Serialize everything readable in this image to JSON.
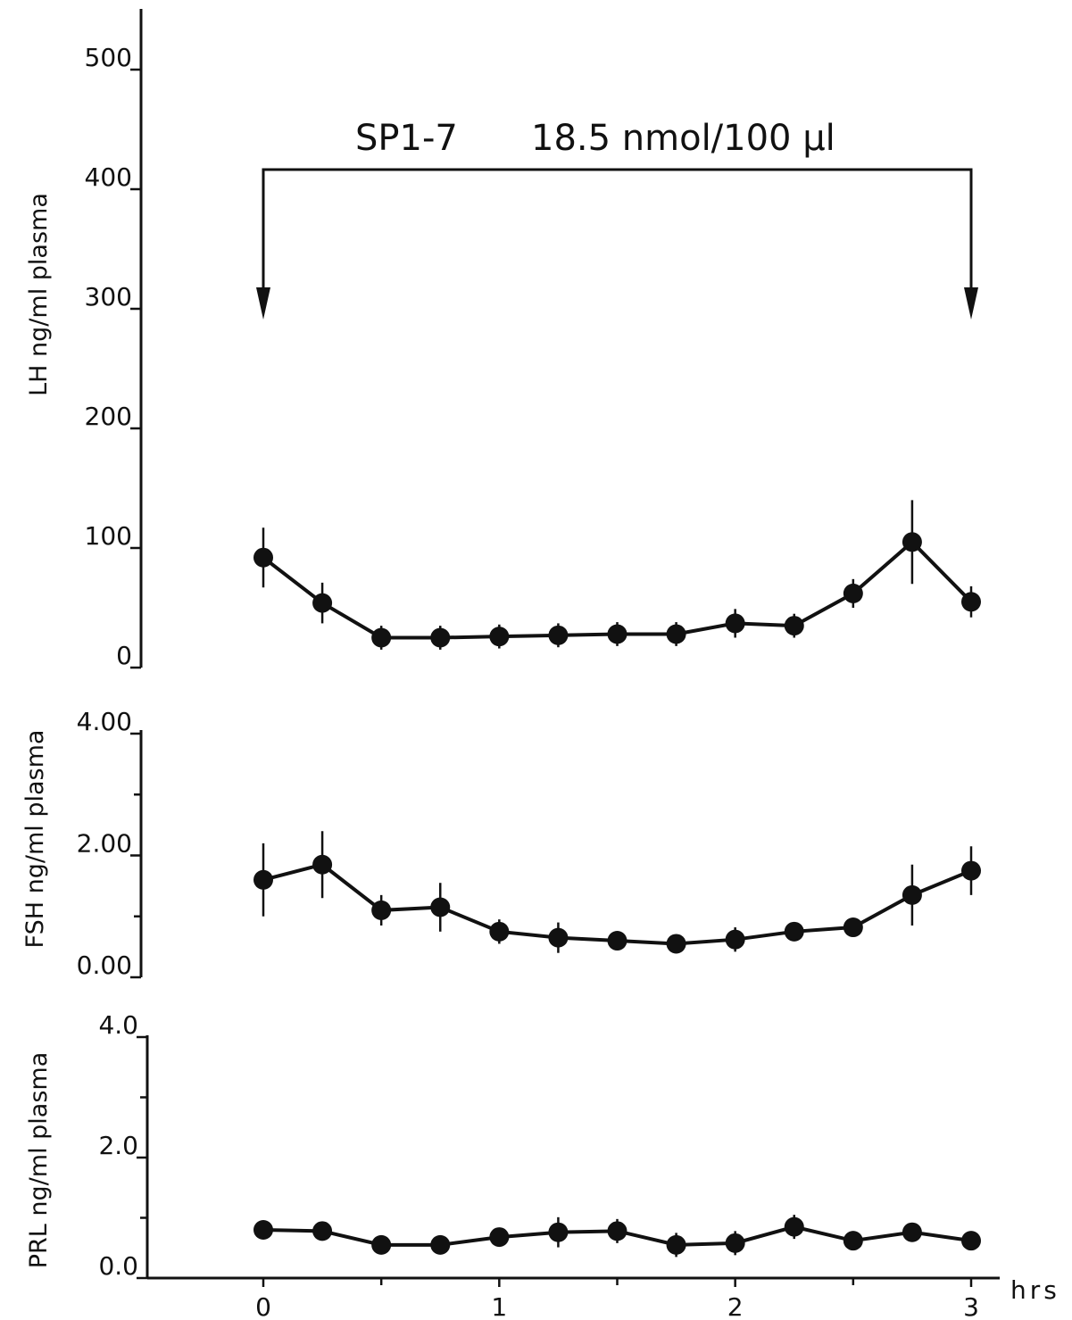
{
  "chart_data": [
    {
      "type": "line",
      "panel": "LH",
      "ylabel": "LH ng/ml plasma",
      "ylim": [
        0,
        500
      ],
      "yticks": [
        0,
        100,
        200,
        300,
        400,
        500
      ],
      "ytick_labels": [
        "0",
        "100",
        "200",
        "300",
        "400",
        "500"
      ],
      "x": [
        0,
        0.25,
        0.5,
        0.75,
        1.0,
        1.25,
        1.5,
        1.75,
        2.0,
        2.25,
        2.5,
        2.75,
        3.0
      ],
      "values": [
        92,
        54,
        25,
        25,
        26,
        27,
        28,
        28,
        37,
        35,
        62,
        105,
        55
      ],
      "errors": [
        25,
        17,
        10,
        10,
        10,
        10,
        10,
        10,
        12,
        10,
        12,
        35,
        13
      ]
    },
    {
      "type": "line",
      "panel": "FSH",
      "ylabel": "FSH ng/ml plasma",
      "ylim": [
        0,
        4
      ],
      "yticks": [
        0,
        2,
        4
      ],
      "ytick_labels": [
        "0.00",
        "2.00",
        "4.00"
      ],
      "x": [
        0,
        0.25,
        0.5,
        0.75,
        1.0,
        1.25,
        1.5,
        1.75,
        2.0,
        2.25,
        2.5,
        2.75,
        3.0
      ],
      "values": [
        1.6,
        1.85,
        1.1,
        1.15,
        0.75,
        0.65,
        0.6,
        0.55,
        0.62,
        0.75,
        0.82,
        1.35,
        1.75
      ],
      "errors": [
        0.6,
        0.55,
        0.25,
        0.4,
        0.2,
        0.25,
        0.15,
        0.15,
        0.2,
        0.15,
        0.15,
        0.5,
        0.4
      ]
    },
    {
      "type": "line",
      "panel": "PRL",
      "ylabel": "PRL ng/ml plasma",
      "ylim": [
        0,
        4
      ],
      "yticks": [
        0,
        2,
        4
      ],
      "ytick_labels": [
        "0.0",
        "2.0",
        "4.0"
      ],
      "x": [
        0,
        0.25,
        0.5,
        0.75,
        1.0,
        1.25,
        1.5,
        1.75,
        2.0,
        2.25,
        2.5,
        2.75,
        3.0
      ],
      "values": [
        0.8,
        0.78,
        0.55,
        0.55,
        0.68,
        0.76,
        0.78,
        0.55,
        0.58,
        0.85,
        0.62,
        0.76,
        0.62
      ],
      "errors": [
        0.12,
        0.15,
        0.15,
        0.15,
        0.15,
        0.25,
        0.2,
        0.2,
        0.2,
        0.2,
        0.15,
        0.15,
        0.12
      ]
    }
  ],
  "x_axis": {
    "ticks": [
      0,
      1,
      2,
      3
    ],
    "tick_labels": [
      "0",
      "1",
      "2",
      "3"
    ],
    "unit_label": "hrs",
    "xlim": [
      0,
      3
    ]
  },
  "annotation": {
    "peptide": "SP1-7",
    "dose": "18.5 nmol/100 µl",
    "start_hr": 0,
    "end_hr": 3
  }
}
